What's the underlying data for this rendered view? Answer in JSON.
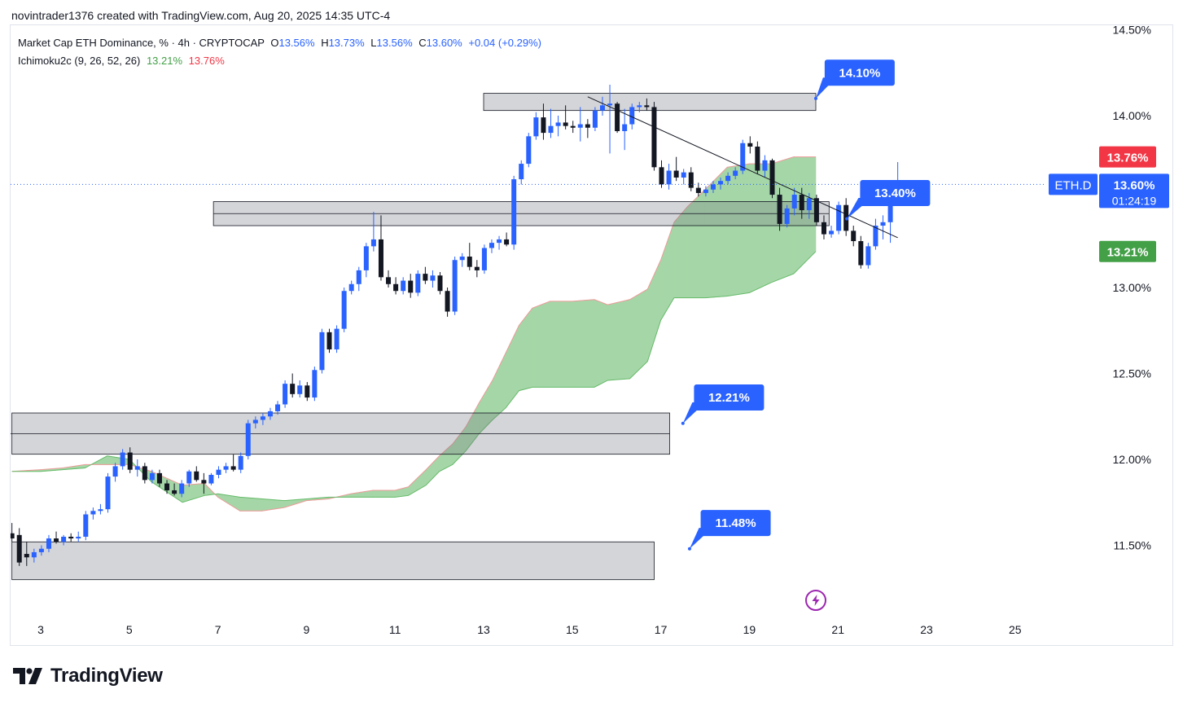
{
  "header": {
    "created_text": "novintrader1376 created with TradingView.com, Aug 20, 2025 14:35 UTC-4"
  },
  "legend": {
    "symbol": "Market Cap ETH Dominance, % · 4h · CRYPTOCAP",
    "o_label": "O",
    "o_value": "13.56%",
    "h_label": "H",
    "h_value": "13.73%",
    "l_label": "L",
    "l_value": "13.56%",
    "c_label": "C",
    "c_value": "13.60%",
    "change": "+0.04 (+0.29%)",
    "indicator": "Ichimoku2c (9, 26, 52, 26)",
    "ind_val1": "13.21%",
    "ind_val2": "13.76%"
  },
  "branding": {
    "logo_text": "TradingView"
  },
  "colors": {
    "up": "#2962ff",
    "down": "#131722",
    "cloud": "#a5d6a7",
    "cloud_line": "#ef9a9a",
    "cloud_line2": "#66bb6a",
    "callout": "#2962ff",
    "price_red": "#f23645",
    "price_green": "#43a047"
  },
  "chart_data": {
    "type": "candlestick",
    "symbol_label": "ETH.D",
    "timer": "01:24:19",
    "x_axis": {
      "ticks": [
        "3",
        "5",
        "7",
        "9",
        "11",
        "13",
        "15",
        "17",
        "19",
        "21",
        "23",
        "25"
      ],
      "tick_days": [
        3,
        5,
        7,
        9,
        11,
        13,
        15,
        17,
        19,
        21,
        23,
        25
      ],
      "range_days": [
        2.35,
        27.0
      ]
    },
    "y_axis": {
      "range": [
        11.0,
        14.5
      ],
      "ticks": [
        11.5,
        12.0,
        12.5,
        13.0,
        13.5,
        14.0,
        14.5
      ],
      "tick_labels": [
        "11.50%",
        "12.00%",
        "12.50%",
        "13.00%",
        "13.50%",
        "14.00%",
        "14.50%"
      ],
      "suffix": "%"
    },
    "price_labels": [
      {
        "value": 13.76,
        "text": "13.76%",
        "color": "red"
      },
      {
        "value": 13.6,
        "text": "13.60%",
        "color": "blue"
      },
      {
        "value": 13.21,
        "text": "13.21%",
        "color": "green"
      }
    ],
    "current_price": 13.6,
    "zones": [
      {
        "from_day": 13.0,
        "to_day": 20.5,
        "low": 14.03,
        "high": 14.13
      },
      {
        "from_day": 6.9,
        "to_day": 20.8,
        "low": 13.36,
        "high": 13.5
      },
      {
        "from_day": 2.35,
        "to_day": 17.2,
        "low": 12.03,
        "high": 12.27
      },
      {
        "from_day": 2.35,
        "to_day": 16.85,
        "low": 11.3,
        "high": 11.52
      }
    ],
    "callouts": [
      {
        "text": "14.10%",
        "day": 20.5,
        "value": 14.1,
        "box_day": 20.7,
        "box_value": 14.25
      },
      {
        "text": "13.40%",
        "day": 21.2,
        "value": 13.4,
        "box_day": 21.5,
        "box_value": 13.55
      },
      {
        "text": "12.21%",
        "day": 17.5,
        "value": 12.21,
        "box_day": 17.75,
        "box_value": 12.36
      },
      {
        "text": "11.48%",
        "day": 17.65,
        "value": 11.48,
        "box_day": 17.9,
        "box_value": 11.63
      }
    ],
    "trendline": {
      "from": [
        15.35,
        14.11
      ],
      "to": [
        22.35,
        13.29
      ]
    },
    "candles": [
      {
        "o": 11.57,
        "h": 11.63,
        "l": 11.52,
        "c": 11.54
      },
      {
        "o": 11.56,
        "h": 11.6,
        "l": 11.38,
        "c": 11.4
      },
      {
        "o": 11.45,
        "h": 11.52,
        "l": 11.38,
        "c": 11.43
      },
      {
        "o": 11.43,
        "h": 11.48,
        "l": 11.4,
        "c": 11.46
      },
      {
        "o": 11.46,
        "h": 11.5,
        "l": 11.44,
        "c": 11.48
      },
      {
        "o": 11.48,
        "h": 11.56,
        "l": 11.46,
        "c": 11.54
      },
      {
        "o": 11.54,
        "h": 11.58,
        "l": 11.51,
        "c": 11.52
      },
      {
        "o": 11.52,
        "h": 11.56,
        "l": 11.5,
        "c": 11.55
      },
      {
        "o": 11.55,
        "h": 11.57,
        "l": 11.52,
        "c": 11.54
      },
      {
        "o": 11.54,
        "h": 11.58,
        "l": 11.52,
        "c": 11.55
      },
      {
        "o": 11.55,
        "h": 11.7,
        "l": 11.53,
        "c": 11.68
      },
      {
        "o": 11.68,
        "h": 11.72,
        "l": 11.65,
        "c": 11.7
      },
      {
        "o": 11.7,
        "h": 11.74,
        "l": 11.68,
        "c": 11.71
      },
      {
        "o": 11.71,
        "h": 11.92,
        "l": 11.69,
        "c": 11.9
      },
      {
        "o": 11.9,
        "h": 11.98,
        "l": 11.87,
        "c": 11.96
      },
      {
        "o": 11.96,
        "h": 12.06,
        "l": 11.94,
        "c": 12.04
      },
      {
        "o": 12.04,
        "h": 12.07,
        "l": 11.92,
        "c": 11.94
      },
      {
        "o": 11.94,
        "h": 12.0,
        "l": 11.9,
        "c": 11.96
      },
      {
        "o": 11.96,
        "h": 11.98,
        "l": 11.86,
        "c": 11.88
      },
      {
        "o": 11.88,
        "h": 11.94,
        "l": 11.86,
        "c": 11.92
      },
      {
        "o": 11.92,
        "h": 11.94,
        "l": 11.84,
        "c": 11.86
      },
      {
        "o": 11.86,
        "h": 11.88,
        "l": 11.8,
        "c": 11.82
      },
      {
        "o": 11.82,
        "h": 11.86,
        "l": 11.79,
        "c": 11.8
      },
      {
        "o": 11.8,
        "h": 11.88,
        "l": 11.78,
        "c": 11.86
      },
      {
        "o": 11.86,
        "h": 11.94,
        "l": 11.84,
        "c": 11.93
      },
      {
        "o": 11.93,
        "h": 11.96,
        "l": 11.87,
        "c": 11.88
      },
      {
        "o": 11.88,
        "h": 11.92,
        "l": 11.8,
        "c": 11.86
      },
      {
        "o": 11.86,
        "h": 11.92,
        "l": 11.85,
        "c": 11.91
      },
      {
        "o": 11.91,
        "h": 11.96,
        "l": 11.89,
        "c": 11.94
      },
      {
        "o": 11.94,
        "h": 11.98,
        "l": 11.92,
        "c": 11.96
      },
      {
        "o": 11.96,
        "h": 12.03,
        "l": 11.93,
        "c": 11.94
      },
      {
        "o": 11.94,
        "h": 12.04,
        "l": 11.92,
        "c": 12.02
      },
      {
        "o": 12.02,
        "h": 12.23,
        "l": 12.0,
        "c": 12.21
      },
      {
        "o": 12.21,
        "h": 12.25,
        "l": 12.18,
        "c": 12.23
      },
      {
        "o": 12.23,
        "h": 12.27,
        "l": 12.2,
        "c": 12.25
      },
      {
        "o": 12.25,
        "h": 12.3,
        "l": 12.23,
        "c": 12.28
      },
      {
        "o": 12.28,
        "h": 12.34,
        "l": 12.26,
        "c": 12.32
      },
      {
        "o": 12.32,
        "h": 12.46,
        "l": 12.3,
        "c": 12.44
      },
      {
        "o": 12.44,
        "h": 12.5,
        "l": 12.36,
        "c": 12.38
      },
      {
        "o": 12.38,
        "h": 12.46,
        "l": 12.36,
        "c": 12.43
      },
      {
        "o": 12.43,
        "h": 12.45,
        "l": 12.34,
        "c": 12.36
      },
      {
        "o": 12.36,
        "h": 12.54,
        "l": 12.34,
        "c": 12.52
      },
      {
        "o": 12.52,
        "h": 12.76,
        "l": 12.5,
        "c": 12.74
      },
      {
        "o": 12.74,
        "h": 12.76,
        "l": 12.62,
        "c": 12.64
      },
      {
        "o": 12.64,
        "h": 12.78,
        "l": 12.62,
        "c": 12.76
      },
      {
        "o": 12.76,
        "h": 13.0,
        "l": 12.74,
        "c": 12.98
      },
      {
        "o": 12.98,
        "h": 13.04,
        "l": 12.96,
        "c": 13.02
      },
      {
        "o": 13.02,
        "h": 13.12,
        "l": 12.98,
        "c": 13.1
      },
      {
        "o": 13.1,
        "h": 13.26,
        "l": 13.06,
        "c": 13.24
      },
      {
        "o": 13.24,
        "h": 13.44,
        "l": 13.21,
        "c": 13.28
      },
      {
        "o": 13.28,
        "h": 13.42,
        "l": 13.04,
        "c": 13.06
      },
      {
        "o": 13.06,
        "h": 13.1,
        "l": 13.0,
        "c": 13.02
      },
      {
        "o": 13.02,
        "h": 13.06,
        "l": 12.96,
        "c": 12.98
      },
      {
        "o": 12.98,
        "h": 13.06,
        "l": 12.96,
        "c": 13.04
      },
      {
        "o": 13.04,
        "h": 13.08,
        "l": 12.94,
        "c": 12.97
      },
      {
        "o": 12.97,
        "h": 13.1,
        "l": 12.95,
        "c": 13.08
      },
      {
        "o": 13.08,
        "h": 13.12,
        "l": 13.02,
        "c": 13.04
      },
      {
        "o": 13.04,
        "h": 13.1,
        "l": 13.0,
        "c": 13.07
      },
      {
        "o": 13.07,
        "h": 13.09,
        "l": 12.96,
        "c": 12.98
      },
      {
        "o": 12.98,
        "h": 13.0,
        "l": 12.83,
        "c": 12.86
      },
      {
        "o": 12.86,
        "h": 13.18,
        "l": 12.84,
        "c": 13.16
      },
      {
        "o": 13.16,
        "h": 13.2,
        "l": 13.12,
        "c": 13.18
      },
      {
        "o": 13.18,
        "h": 13.26,
        "l": 13.1,
        "c": 13.12
      },
      {
        "o": 13.12,
        "h": 13.16,
        "l": 13.06,
        "c": 13.1
      },
      {
        "o": 13.1,
        "h": 13.25,
        "l": 13.08,
        "c": 13.23
      },
      {
        "o": 13.23,
        "h": 13.28,
        "l": 13.2,
        "c": 13.26
      },
      {
        "o": 13.26,
        "h": 13.3,
        "l": 13.22,
        "c": 13.28
      },
      {
        "o": 13.28,
        "h": 13.32,
        "l": 13.24,
        "c": 13.25
      },
      {
        "o": 13.25,
        "h": 13.65,
        "l": 13.22,
        "c": 13.63
      },
      {
        "o": 13.63,
        "h": 13.74,
        "l": 13.6,
        "c": 13.72
      },
      {
        "o": 13.72,
        "h": 13.9,
        "l": 13.7,
        "c": 13.88
      },
      {
        "o": 13.88,
        "h": 14.02,
        "l": 13.86,
        "c": 13.99
      },
      {
        "o": 13.99,
        "h": 14.07,
        "l": 13.86,
        "c": 13.9
      },
      {
        "o": 13.9,
        "h": 14.04,
        "l": 13.87,
        "c": 13.94
      },
      {
        "o": 13.94,
        "h": 14.0,
        "l": 13.88,
        "c": 13.96
      },
      {
        "o": 13.96,
        "h": 14.06,
        "l": 13.92,
        "c": 13.94
      },
      {
        "o": 13.94,
        "h": 13.97,
        "l": 13.9,
        "c": 13.93
      },
      {
        "o": 13.93,
        "h": 14.05,
        "l": 13.85,
        "c": 13.95
      },
      {
        "o": 13.95,
        "h": 13.98,
        "l": 13.87,
        "c": 13.93
      },
      {
        "o": 13.93,
        "h": 14.05,
        "l": 13.91,
        "c": 14.03
      },
      {
        "o": 14.03,
        "h": 14.11,
        "l": 14.0,
        "c": 14.06
      },
      {
        "o": 14.06,
        "h": 14.18,
        "l": 13.78,
        "c": 14.07
      },
      {
        "o": 14.07,
        "h": 14.08,
        "l": 13.9,
        "c": 13.91
      },
      {
        "o": 13.91,
        "h": 14.04,
        "l": 13.8,
        "c": 13.95
      },
      {
        "o": 13.95,
        "h": 14.07,
        "l": 13.92,
        "c": 14.05
      },
      {
        "o": 14.05,
        "h": 14.08,
        "l": 14.02,
        "c": 14.06
      },
      {
        "o": 14.06,
        "h": 14.1,
        "l": 14.03,
        "c": 14.05
      },
      {
        "o": 14.05,
        "h": 14.08,
        "l": 13.68,
        "c": 13.7
      },
      {
        "o": 13.7,
        "h": 13.74,
        "l": 13.58,
        "c": 13.6
      },
      {
        "o": 13.6,
        "h": 13.72,
        "l": 13.57,
        "c": 13.68
      },
      {
        "o": 13.68,
        "h": 13.76,
        "l": 13.62,
        "c": 13.64
      },
      {
        "o": 13.64,
        "h": 13.69,
        "l": 13.6,
        "c": 13.67
      },
      {
        "o": 13.67,
        "h": 13.7,
        "l": 13.56,
        "c": 13.58
      },
      {
        "o": 13.58,
        "h": 13.61,
        "l": 13.53,
        "c": 13.55
      },
      {
        "o": 13.55,
        "h": 13.59,
        "l": 13.53,
        "c": 13.57
      },
      {
        "o": 13.57,
        "h": 13.62,
        "l": 13.55,
        "c": 13.6
      },
      {
        "o": 13.6,
        "h": 13.64,
        "l": 13.57,
        "c": 13.62
      },
      {
        "o": 13.62,
        "h": 13.67,
        "l": 13.6,
        "c": 13.65
      },
      {
        "o": 13.65,
        "h": 13.7,
        "l": 13.63,
        "c": 13.68
      },
      {
        "o": 13.68,
        "h": 13.86,
        "l": 13.66,
        "c": 13.84
      },
      {
        "o": 13.84,
        "h": 13.88,
        "l": 13.78,
        "c": 13.82
      },
      {
        "o": 13.82,
        "h": 13.85,
        "l": 13.66,
        "c": 13.68
      },
      {
        "o": 13.68,
        "h": 13.77,
        "l": 13.64,
        "c": 13.74
      },
      {
        "o": 13.74,
        "h": 13.75,
        "l": 13.52,
        "c": 13.54
      },
      {
        "o": 13.54,
        "h": 13.58,
        "l": 13.33,
        "c": 13.37
      },
      {
        "o": 13.37,
        "h": 13.48,
        "l": 13.35,
        "c": 13.46
      },
      {
        "o": 13.46,
        "h": 13.58,
        "l": 13.42,
        "c": 13.54
      },
      {
        "o": 13.54,
        "h": 13.58,
        "l": 13.4,
        "c": 13.45
      },
      {
        "o": 13.45,
        "h": 13.55,
        "l": 13.4,
        "c": 13.52
      },
      {
        "o": 13.52,
        "h": 13.54,
        "l": 13.36,
        "c": 13.38
      },
      {
        "o": 13.38,
        "h": 13.42,
        "l": 13.28,
        "c": 13.31
      },
      {
        "o": 13.31,
        "h": 13.36,
        "l": 13.29,
        "c": 13.33
      },
      {
        "o": 13.33,
        "h": 13.5,
        "l": 13.31,
        "c": 13.48
      },
      {
        "o": 13.48,
        "h": 13.52,
        "l": 13.3,
        "c": 13.33
      },
      {
        "o": 13.33,
        "h": 13.36,
        "l": 13.24,
        "c": 13.27
      },
      {
        "o": 13.27,
        "h": 13.3,
        "l": 13.11,
        "c": 13.13
      },
      {
        "o": 13.13,
        "h": 13.26,
        "l": 13.11,
        "c": 13.24
      },
      {
        "o": 13.24,
        "h": 13.4,
        "l": 13.22,
        "c": 13.36
      },
      {
        "o": 13.36,
        "h": 13.42,
        "l": 13.28,
        "c": 13.38
      },
      {
        "o": 13.38,
        "h": 13.6,
        "l": 13.26,
        "c": 13.55
      },
      {
        "o": 13.56,
        "h": 13.73,
        "l": 13.56,
        "c": 13.6
      }
    ],
    "cloud": [
      [
        2.35,
        11.93,
        11.93
      ],
      [
        3.0,
        11.94,
        11.93
      ],
      [
        3.5,
        11.95,
        11.94
      ],
      [
        4.0,
        11.97,
        11.95
      ],
      [
        4.5,
        11.97,
        12.02
      ],
      [
        5.0,
        11.97,
        12.0
      ],
      [
        5.5,
        11.93,
        11.87
      ],
      [
        6.2,
        11.85,
        11.75
      ],
      [
        6.7,
        11.86,
        11.79
      ],
      [
        7.0,
        11.78,
        11.8
      ],
      [
        7.5,
        11.7,
        11.78
      ],
      [
        8.0,
        11.7,
        11.77
      ],
      [
        8.5,
        11.72,
        11.76
      ],
      [
        9.0,
        11.76,
        11.77
      ],
      [
        9.5,
        11.77,
        11.78
      ],
      [
        10.0,
        11.8,
        11.78
      ],
      [
        10.5,
        11.82,
        11.78
      ],
      [
        11.0,
        11.82,
        11.78
      ],
      [
        11.3,
        11.84,
        11.79
      ],
      [
        11.7,
        11.94,
        11.85
      ],
      [
        12.0,
        12.02,
        11.93
      ],
      [
        12.3,
        12.09,
        11.97
      ],
      [
        12.6,
        12.19,
        12.05
      ],
      [
        12.9,
        12.33,
        12.15
      ],
      [
        13.2,
        12.46,
        12.23
      ],
      [
        13.5,
        12.62,
        12.3
      ],
      [
        13.8,
        12.78,
        12.4
      ],
      [
        14.1,
        12.88,
        12.42
      ],
      [
        14.5,
        12.92,
        12.42
      ],
      [
        15.0,
        12.92,
        12.42
      ],
      [
        15.5,
        12.93,
        12.42
      ],
      [
        15.8,
        12.9,
        12.46
      ],
      [
        16.3,
        12.93,
        12.47
      ],
      [
        16.7,
        12.99,
        12.57
      ],
      [
        17.0,
        13.16,
        12.81
      ],
      [
        17.3,
        13.38,
        12.94
      ],
      [
        17.6,
        13.47,
        12.94
      ],
      [
        18.0,
        13.57,
        12.94
      ],
      [
        18.5,
        13.7,
        12.95
      ],
      [
        19.0,
        13.72,
        12.97
      ],
      [
        19.5,
        13.72,
        13.03
      ],
      [
        20.0,
        13.76,
        13.08
      ],
      [
        20.5,
        13.76,
        13.21
      ]
    ]
  }
}
